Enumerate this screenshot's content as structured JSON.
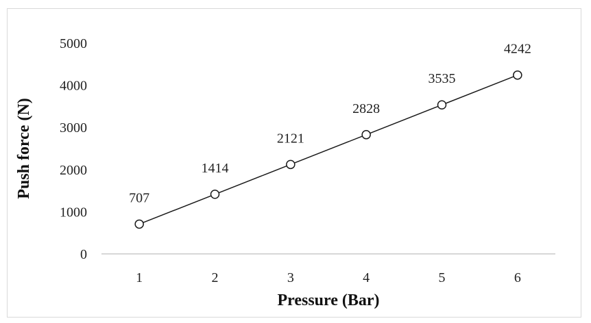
{
  "chart_data": {
    "type": "line",
    "title": "",
    "xlabel": "Pressure (Bar)",
    "ylabel": "Push force (N)",
    "categories": [
      "1",
      "2",
      "3",
      "4",
      "5",
      "6"
    ],
    "x": [
      1,
      2,
      3,
      4,
      5,
      6
    ],
    "series": [
      {
        "values": [
          707,
          1414,
          2121,
          2828,
          3535,
          4242
        ]
      }
    ],
    "data_labels": [
      "707",
      "1414",
      "2121",
      "2828",
      "3535",
      "4242"
    ],
    "ylim": [
      0,
      5000
    ],
    "yticks": [
      "0",
      "1000",
      "2000",
      "3000",
      "4000",
      "5000"
    ],
    "grid": false,
    "legend": "none",
    "colors": {
      "line": "#1a1a1a",
      "marker_fill": "#ffffff",
      "axis": "#bfbfbf"
    }
  }
}
